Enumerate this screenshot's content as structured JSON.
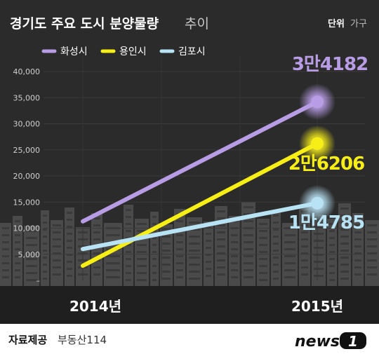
{
  "header": {
    "title_bold": "경기도 주요 도시 분양물량",
    "title_light": "추이",
    "unit_bold": "단위",
    "unit_light": "가구"
  },
  "chart_data": {
    "type": "line",
    "x": [
      "2014년",
      "2015년"
    ],
    "ylim": [
      0,
      42500
    ],
    "yticks": [
      {
        "value": 40000,
        "label": "40,000"
      },
      {
        "value": 35000,
        "label": "35,000"
      },
      {
        "value": 30000,
        "label": "30,000"
      },
      {
        "value": 25000,
        "label": "25,000"
      },
      {
        "value": 20000,
        "label": "20,000"
      },
      {
        "value": 15000,
        "label": "15,000"
      },
      {
        "value": 10000,
        "label": "10,000"
      },
      {
        "value": 5000,
        "label": "5,000"
      },
      {
        "value": 0,
        "label": "–"
      }
    ],
    "grid": true,
    "legend_position": "top-left",
    "series": [
      {
        "name": "화성시",
        "color": "#b99ce6",
        "values": [
          11300,
          34182
        ],
        "end_label": "3만4182"
      },
      {
        "name": "용인시",
        "color": "#f7ee16",
        "values": [
          2800,
          26206
        ],
        "end_label": "2만6206"
      },
      {
        "name": "김포시",
        "color": "#b8e3f5",
        "values": [
          6000,
          14785
        ],
        "end_label": "1만4785"
      }
    ]
  },
  "footer": {
    "source_label": "자료제공",
    "source_name": "부동산114",
    "brand": "news",
    "brand_number": "1"
  }
}
